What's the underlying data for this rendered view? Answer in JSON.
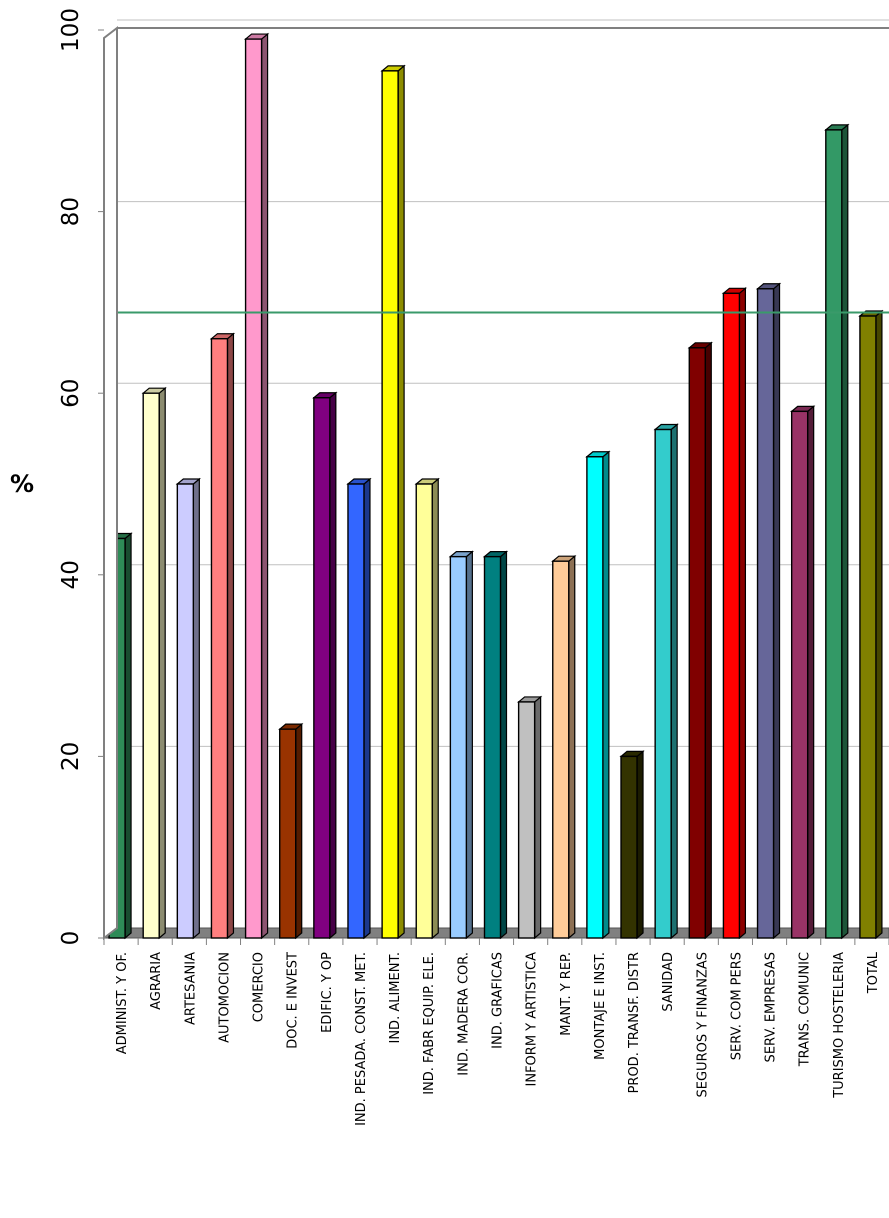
{
  "chart_data": {
    "type": "bar",
    "title": "",
    "xlabel": "",
    "ylabel": "%",
    "ylim": [
      0,
      100
    ],
    "yticks": [
      0,
      20,
      40,
      60,
      80,
      100
    ],
    "grid": true,
    "legend": "none",
    "reference_line": {
      "value": 68,
      "color": "#3a9a6a"
    },
    "categories": [
      "ADMINIST. Y OF.",
      "AGRARIA",
      "ARTESANIA",
      "AUTOMOCION",
      "COMERCIO",
      "DOC. E INVEST",
      "EDIFIC. Y OP",
      "IND. PESADA. CONST. MET.",
      "IND. ALIMENT.",
      "IND. FABR EQUIP. ELE.",
      "IND. MADERA COR.",
      "IND. GRAFICAS",
      "INFORM Y ARTISTICA",
      "MANT. Y REP.",
      "MONTAJE E INST.",
      "PROD. TRANSF. DISTR",
      "SANIDAD",
      "SEGUROS Y FINANZAS",
      "SERV. COM PERS",
      "SERV. EMPRESAS",
      "TRANS. COMUNIC",
      "TURISMO HOSTELERIA",
      "TOTAL"
    ],
    "values": [
      44,
      60,
      50,
      66,
      99,
      23,
      59.5,
      50,
      95.5,
      50,
      42,
      42,
      26,
      41.5,
      53,
      20,
      56,
      65,
      71,
      71.5,
      58,
      89,
      68.5
    ],
    "colors": [
      "#2e8b57",
      "#ffffcc",
      "#ccccff",
      "#ff7f7f",
      "#ff99cc",
      "#993300",
      "#800080",
      "#3366ff",
      "#ffff00",
      "#ffff99",
      "#99ccff",
      "#008080",
      "#c0c0c0",
      "#ffcc99",
      "#00ffff",
      "#333300",
      "#33cccc",
      "#800000",
      "#ff0000",
      "#666699",
      "#993366",
      "#339966",
      "#808000"
    ]
  }
}
